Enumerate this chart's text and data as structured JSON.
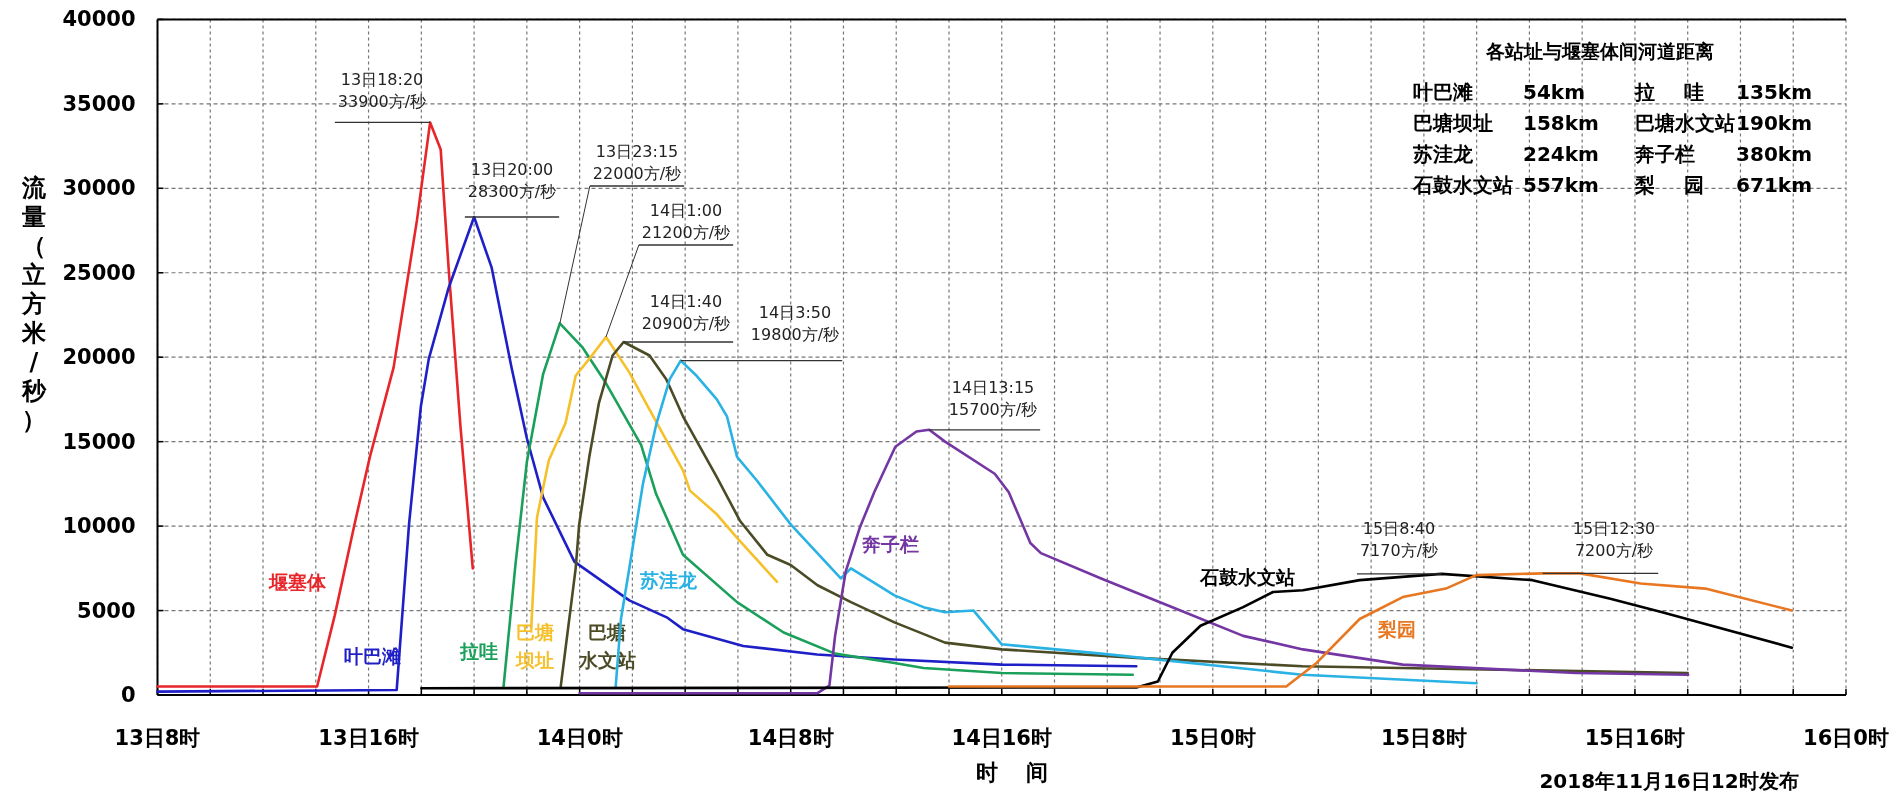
{
  "chart_data": {
    "type": "line",
    "xlabel": "时 间",
    "ylabel": "流量（立方米/秒）",
    "xlim": [
      "2018-11-13T08:00",
      "2018-11-16T00:00"
    ],
    "ylim": [
      0,
      40000
    ],
    "xticks": [
      {
        "value": "2018-11-13T08:00",
        "label": "13日8时"
      },
      {
        "value": "2018-11-13T10:00",
        "label": null
      },
      {
        "value": "2018-11-13T12:00",
        "label": null
      },
      {
        "value": "2018-11-13T14:00",
        "label": null
      },
      {
        "value": "2018-11-13T16:00",
        "label": "13日16时"
      },
      {
        "value": "2018-11-13T18:00",
        "label": null
      },
      {
        "value": "2018-11-13T20:00",
        "label": null
      },
      {
        "value": "2018-11-13T22:00",
        "label": null
      },
      {
        "value": "2018-11-14T00:00",
        "label": "14日0时"
      },
      {
        "value": "2018-11-14T02:00",
        "label": null
      },
      {
        "value": "2018-11-14T04:00",
        "label": null
      },
      {
        "value": "2018-11-14T06:00",
        "label": null
      },
      {
        "value": "2018-11-14T08:00",
        "label": "14日8时"
      },
      {
        "value": "2018-11-14T10:00",
        "label": null
      },
      {
        "value": "2018-11-14T12:00",
        "label": null
      },
      {
        "value": "2018-11-14T14:00",
        "label": null
      },
      {
        "value": "2018-11-14T16:00",
        "label": "14日16时"
      },
      {
        "value": "2018-11-14T18:00",
        "label": null
      },
      {
        "value": "2018-11-14T20:00",
        "label": null
      },
      {
        "value": "2018-11-14T22:00",
        "label": null
      },
      {
        "value": "2018-11-15T00:00",
        "label": "15日0时"
      },
      {
        "value": "2018-11-15T02:00",
        "label": null
      },
      {
        "value": "2018-11-15T04:00",
        "label": null
      },
      {
        "value": "2018-11-15T06:00",
        "label": null
      },
      {
        "value": "2018-11-15T08:00",
        "label": "15日8时"
      },
      {
        "value": "2018-11-15T10:00",
        "label": null
      },
      {
        "value": "2018-11-15T12:00",
        "label": null
      },
      {
        "value": "2018-11-15T14:00",
        "label": null
      },
      {
        "value": "2018-11-15T16:00",
        "label": "15日16时"
      },
      {
        "value": "2018-11-15T18:00",
        "label": null
      },
      {
        "value": "2018-11-15T20:00",
        "label": null
      },
      {
        "value": "2018-11-15T22:00",
        "label": null
      },
      {
        "value": "2018-11-16T00:00",
        "label": "16日0时"
      }
    ],
    "yticks": [
      0,
      5000,
      10000,
      15000,
      20000,
      25000,
      30000,
      35000,
      40000
    ],
    "grid": true,
    "series": [
      {
        "name": "堰塞体",
        "color": "#e8262a",
        "x": [
          "2018-11-13T08:00",
          "2018-11-13T14:03",
          "2018-11-13T14:43",
          "2018-11-13T15:28",
          "2018-11-13T16:03",
          "2018-11-13T16:57",
          "2018-11-13T17:50",
          "2018-11-13T18:20",
          "2018-11-13T18:44",
          "2018-11-13T19:02",
          "2018-11-13T19:29",
          "2018-11-13T19:57"
        ],
        "values": [
          500,
          500,
          4700,
          10100,
          14100,
          19400,
          28100,
          33900,
          32300,
          25300,
          15900,
          7500
        ]
      },
      {
        "name": "叶巴滩",
        "color": "#1f1fc8",
        "x": [
          "2018-11-13T08:00",
          "2018-11-13T17:04",
          "2018-11-13T17:32",
          "2018-11-13T17:59",
          "2018-11-13T18:17",
          "2018-11-13T19:02",
          "2018-11-13T20:00",
          "2018-11-13T20:40",
          "2018-11-13T21:25",
          "2018-11-13T22:00",
          "2018-11-13T22:37",
          "2018-11-13T23:48",
          "2018-11-14T01:53",
          "2018-11-14T03:18",
          "2018-11-14T03:55",
          "2018-11-14T06:12",
          "2018-11-14T09:00",
          "2018-11-14T11:56",
          "2018-11-14T16:00",
          "2018-11-14T21:06"
        ],
        "values": [
          200,
          300,
          10100,
          17100,
          19900,
          24100,
          28300,
          25300,
          19400,
          15200,
          11700,
          7900,
          5600,
          4600,
          3900,
          2900,
          2400,
          2100,
          1800,
          1700
        ]
      },
      {
        "name": "拉哇",
        "color": "#1aa05a",
        "x": [
          "2018-11-13T21:07",
          "2018-11-13T21:34",
          "2018-11-13T22:00",
          "2018-11-13T22:37",
          "2018-11-13T23:15",
          "2018-11-14T00:06",
          "2018-11-14T00:59",
          "2018-11-14T02:20",
          "2018-11-14T02:54",
          "2018-11-14T03:55",
          "2018-11-14T05:58",
          "2018-11-14T07:44",
          "2018-11-14T09:41",
          "2018-11-14T11:56",
          "2018-11-14T13:02",
          "2018-11-14T16:00",
          "2018-11-14T20:58"
        ],
        "values": [
          500,
          7700,
          13800,
          19000,
          22000,
          20600,
          18500,
          14800,
          11900,
          8300,
          5500,
          3700,
          2450,
          1900,
          1600,
          1300,
          1200
        ]
      },
      {
        "name": "巴塘坝址",
        "color": "#f5c02a",
        "x": [
          "2018-11-13T22:10",
          "2018-11-13T22:23",
          "2018-11-13T22:50",
          "2018-11-13T23:28",
          "2018-11-13T23:51",
          "2018-11-14T00:22",
          "2018-11-14T01:00",
          "2018-11-14T01:53",
          "2018-11-14T02:39",
          "2018-11-14T03:55",
          "2018-11-14T04:11",
          "2018-11-14T05:12",
          "2018-11-14T05:58",
          "2018-11-14T07:29"
        ],
        "values": [
          4000,
          10500,
          13900,
          16100,
          18900,
          19900,
          21200,
          19100,
          16900,
          13300,
          12100,
          10700,
          9300,
          6700
        ]
      },
      {
        "name": "巴塘水文站",
        "color": "#4b4b26",
        "x": [
          "2018-11-13T23:17",
          "2018-11-13T23:51",
          "2018-11-13T23:59",
          "2018-11-14T00:22",
          "2018-11-14T00:44",
          "2018-11-14T01:15",
          "2018-11-14T01:40",
          "2018-11-14T02:39",
          "2018-11-14T03:17",
          "2018-11-14T03:55",
          "2018-11-14T05:12",
          "2018-11-14T06:05",
          "2018-11-14T07:07",
          "2018-11-14T08:00",
          "2018-11-14T09:01",
          "2018-11-14T10:17",
          "2018-11-14T11:56",
          "2018-11-14T13:51",
          "2018-11-14T16:00",
          "2018-11-14T21:06",
          "2018-11-15T03:24",
          "2018-11-15T18:00"
        ],
        "values": [
          500,
          7500,
          10100,
          14100,
          17300,
          20100,
          20900,
          20100,
          18700,
          16500,
          12900,
          10300,
          8300,
          7700,
          6500,
          5500,
          4300,
          3100,
          2700,
          2200,
          1700,
          1300
        ]
      },
      {
        "name": "苏洼龙",
        "color": "#29b2e3",
        "x": [
          "2018-11-14T01:22",
          "2018-11-14T01:34",
          "2018-11-14T01:53",
          "2018-11-14T02:24",
          "2018-11-14T02:55",
          "2018-11-14T03:25",
          "2018-11-14T03:50",
          "2018-11-14T04:26",
          "2018-11-14T05:12",
          "2018-11-14T05:35",
          "2018-11-14T05:58",
          "2018-11-14T06:43",
          "2018-11-14T08:00",
          "2018-11-14T09:54",
          "2018-11-14T10:17",
          "2018-11-14T11:56",
          "2018-11-14T13:02",
          "2018-11-14T13:51",
          "2018-11-14T14:56",
          "2018-11-14T16:00",
          "2018-11-14T19:46",
          "2018-11-15T03:24",
          "2018-11-15T10:00"
        ],
        "values": [
          500,
          4500,
          7500,
          12500,
          16100,
          18700,
          19800,
          18900,
          17500,
          16500,
          14100,
          12700,
          10100,
          6900,
          7500,
          5900,
          5200,
          4900,
          5000,
          3000,
          2450,
          1200,
          700
        ]
      },
      {
        "name": "奔子栏",
        "color": "#7436a3",
        "x": [
          "2018-11-14T00:00",
          "2018-11-14T09:00",
          "2018-11-14T09:28",
          "2018-11-14T09:41",
          "2018-11-14T10:05",
          "2018-11-14T10:37",
          "2018-11-14T11:10",
          "2018-11-14T11:58",
          "2018-11-14T12:46",
          "2018-11-14T13:15",
          "2018-11-14T13:51",
          "2018-11-14T15:44",
          "2018-11-14T16:16",
          "2018-11-14T17:05",
          "2018-11-14T17:29",
          "2018-11-14T19:46",
          "2018-11-14T22:28",
          "2018-11-15T01:09",
          "2018-11-15T03:25",
          "2018-11-15T07:12",
          "2018-11-15T13:46",
          "2018-11-15T18:01"
        ],
        "values": [
          100,
          100,
          550,
          3500,
          7300,
          9900,
          12000,
          14700,
          15600,
          15700,
          15000,
          13100,
          12000,
          9000,
          8400,
          6900,
          5200,
          3500,
          2700,
          1800,
          1300,
          1200
        ]
      },
      {
        "name": "石鼓水文站",
        "color": "#000000",
        "x": [
          "2018-11-13T18:00",
          "2018-11-14T21:06",
          "2018-11-14T21:55",
          "2018-11-14T22:28",
          "2018-11-14T23:32",
          "2018-11-15T01:09",
          "2018-11-15T02:17",
          "2018-11-15T03:25",
          "2018-11-15T05:34",
          "2018-11-15T08:40",
          "2018-11-15T12:07",
          "2018-11-15T15:04",
          "2018-11-15T17:02",
          "2018-11-15T21:57"
        ],
        "values": [
          400,
          450,
          800,
          2500,
          4100,
          5200,
          6100,
          6200,
          6800,
          7170,
          6800,
          5700,
          4900,
          2800
        ]
      },
      {
        "name": "梨园",
        "color": "#e87722",
        "x": [
          "2018-11-14T14:00",
          "2018-11-15T02:47",
          "2018-11-15T03:56",
          "2018-11-15T05:34",
          "2018-11-15T07:12",
          "2018-11-15T08:50",
          "2018-11-15T09:59",
          "2018-11-15T12:30",
          "2018-11-15T13:55",
          "2018-11-15T16:13",
          "2018-11-15T18:40",
          "2018-11-15T21:57"
        ],
        "values": [
          500,
          500,
          1900,
          4500,
          5800,
          6300,
          7100,
          7200,
          7200,
          6600,
          6300,
          5000
        ]
      }
    ],
    "annotations": [
      {
        "text": "13日18:20\n33900方/秒",
        "x": "2018-11-13T18:20",
        "y": 33900
      },
      {
        "text": "13日20:00\n28300方/秒",
        "x": "2018-11-13T20:00",
        "y": 28300
      },
      {
        "text": "13日23:15\n22000方/秒",
        "x": "2018-11-13T23:15",
        "y": 22000
      },
      {
        "text": "14日1:00\n21200方/秒",
        "x": "2018-11-14T01:00",
        "y": 21200
      },
      {
        "text": "14日1:40\n20900方/秒",
        "x": "2018-11-14T01:40",
        "y": 20900
      },
      {
        "text": "14日3:50\n19800方/秒",
        "x": "2018-11-14T03:50",
        "y": 19800
      },
      {
        "text": "14日13:15\n15700方/秒",
        "x": "2018-11-14T13:15",
        "y": 15700
      },
      {
        "text": "15日8:40\n7170方/秒",
        "x": "2018-11-15T08:40",
        "y": 7170
      },
      {
        "text": "15日12:30\n7200方/秒",
        "x": "2018-11-15T12:30",
        "y": 7200
      },
      "各站址与堰塞体间河道距离",
      "叶巴滩",
      "54km",
      "拉 哇",
      "135km",
      "巴塘坝址",
      "158km",
      "巴塘水文站",
      "190km",
      "苏洼龙",
      "224km",
      "奔子栏",
      "380km",
      "石鼓水文站",
      "557km",
      "梨 园",
      "671km",
      "2018年11月16日12时发布"
    ]
  }
}
